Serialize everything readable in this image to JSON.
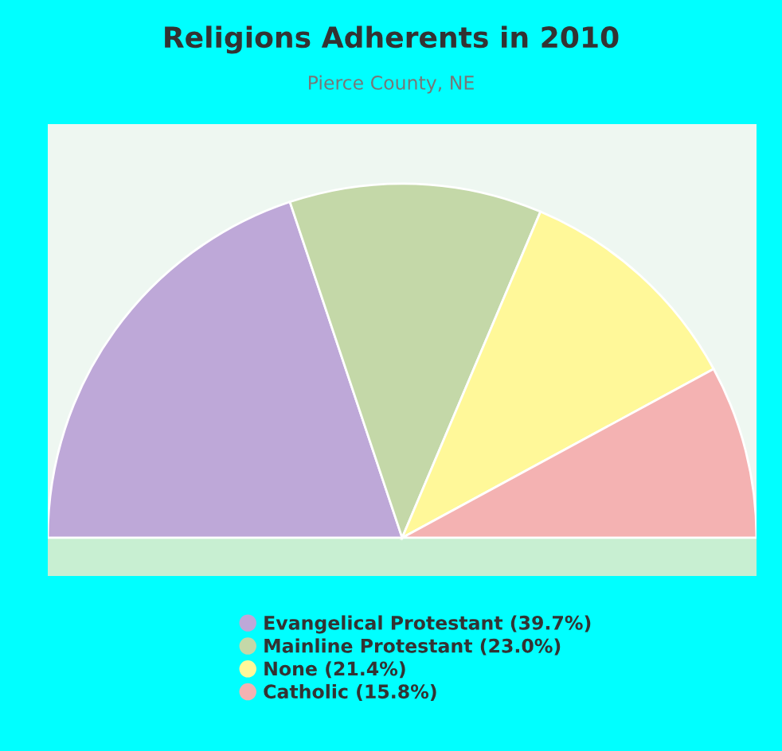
{
  "chart_data": {
    "type": "pie",
    "title": "Religions Adherents in 2010",
    "subtitle": "Pierce County, NE",
    "categories": [
      "Evangelical Protestant (39.7%)",
      "Mainline Protestant (23.0%)",
      "None (21.4%)",
      "Catholic (15.8%)"
    ],
    "values": [
      39.7,
      23.0,
      21.4,
      15.8
    ],
    "colors": [
      "#bea8d8",
      "#c4d8a8",
      "#fff899",
      "#f4b2b2"
    ],
    "legend": "bottom"
  }
}
